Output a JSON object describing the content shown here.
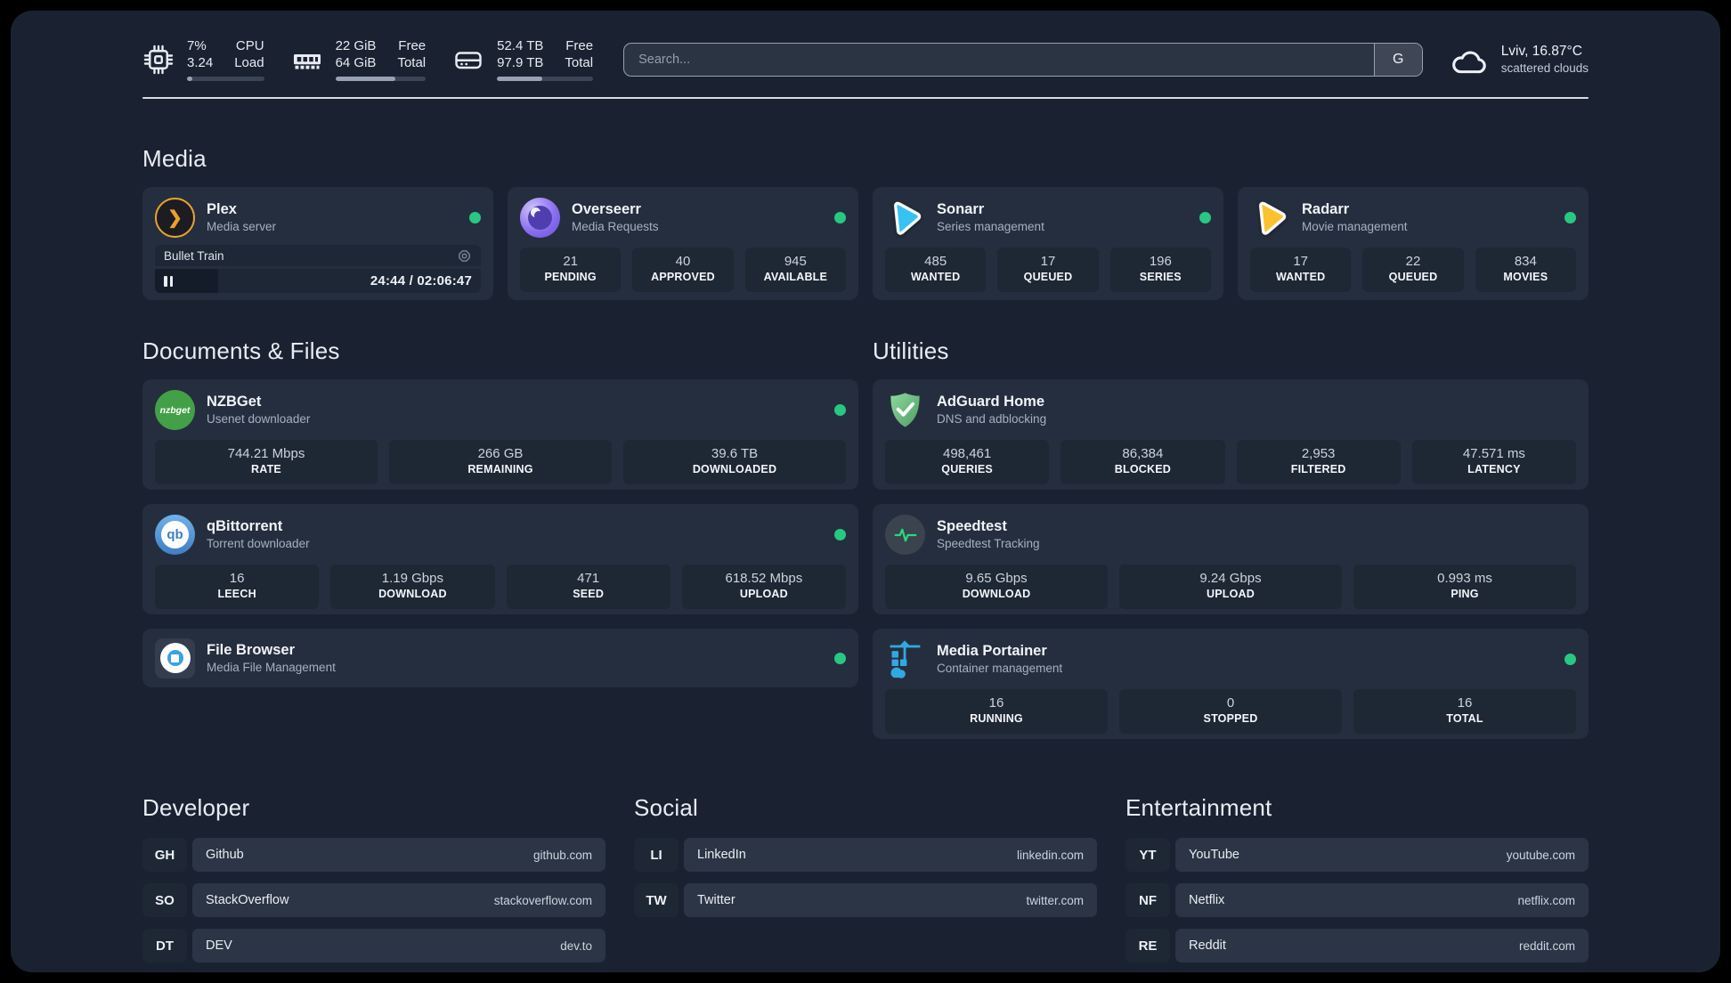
{
  "colors": {
    "background": "#1a2232",
    "card": "#252e3e",
    "tile": "#1e2734",
    "status_online": "#29c784",
    "plex_accent": "#e8a22c",
    "overseerr_accent": "#8b6ff0",
    "sonarr_accent": "#36c3f2",
    "radarr_accent": "#fcc12e",
    "nzbget_accent": "#43a047",
    "qbittorrent_accent": "#3f7fc4",
    "adguard_accent": "#63b36f",
    "speedtest_accent": "#2bd97e",
    "portainer_accent": "#33a8e0"
  },
  "header": {
    "stats": [
      {
        "icon": "cpu-icon",
        "top_value": "7%",
        "bottom_value": "3.24",
        "top_label": "CPU",
        "bottom_label": "Load",
        "progress_pct": 7
      },
      {
        "icon": "ram-icon",
        "top_value": "22 GiB",
        "bottom_value": "64 GiB",
        "top_label": "Free",
        "bottom_label": "Total",
        "progress_pct": 66
      },
      {
        "icon": "disk-icon",
        "top_value": "52.4 TB",
        "bottom_value": "97.9 TB",
        "top_label": "Free",
        "bottom_label": "Total",
        "progress_pct": 47
      }
    ],
    "search": {
      "placeholder": "Search...",
      "button_label": "G"
    },
    "weather": {
      "location": "Lviv, 16.87°C",
      "condition": "scattered clouds"
    }
  },
  "media": {
    "title": "Media",
    "plex": {
      "name": "Plex",
      "description": "Media server",
      "status": "online",
      "player": {
        "title": "Bullet Train",
        "time": "24:44 / 02:06:47",
        "progress_pct": 19.5
      }
    },
    "overseerr": {
      "name": "Overseerr",
      "description": "Media Requests",
      "status": "online",
      "stats": [
        {
          "value": "21",
          "label": "PENDING"
        },
        {
          "value": "40",
          "label": "APPROVED"
        },
        {
          "value": "945",
          "label": "AVAILABLE"
        }
      ]
    },
    "sonarr": {
      "name": "Sonarr",
      "description": "Series management",
      "status": "online",
      "stats": [
        {
          "value": "485",
          "label": "WANTED"
        },
        {
          "value": "17",
          "label": "QUEUED"
        },
        {
          "value": "196",
          "label": "SERIES"
        }
      ]
    },
    "radarr": {
      "name": "Radarr",
      "description": "Movie management",
      "status": "online",
      "stats": [
        {
          "value": "17",
          "label": "WANTED"
        },
        {
          "value": "22",
          "label": "QUEUED"
        },
        {
          "value": "834",
          "label": "MOVIES"
        }
      ]
    }
  },
  "documents": {
    "title": "Documents & Files",
    "nzbget": {
      "name": "NZBGet",
      "description": "Usenet downloader",
      "status": "online",
      "icon_text": "nzbget",
      "stats": [
        {
          "value": "744.21 Mbps",
          "label": "RATE"
        },
        {
          "value": "266 GB",
          "label": "REMAINING"
        },
        {
          "value": "39.6 TB",
          "label": "DOWNLOADED"
        }
      ]
    },
    "qbittorrent": {
      "name": "qBittorrent",
      "description": "Torrent downloader",
      "status": "online",
      "icon_text": "qb",
      "stats": [
        {
          "value": "16",
          "label": "LEECH"
        },
        {
          "value": "1.19 Gbps",
          "label": "DOWNLOAD"
        },
        {
          "value": "471",
          "label": "SEED"
        },
        {
          "value": "618.52 Mbps",
          "label": "UPLOAD"
        }
      ]
    },
    "filebrowser": {
      "name": "File Browser",
      "description": "Media File Management",
      "status": "online"
    }
  },
  "utilities": {
    "title": "Utilities",
    "adguard": {
      "name": "AdGuard Home",
      "description": "DNS and adblocking",
      "stats": [
        {
          "value": "498,461",
          "label": "QUERIES"
        },
        {
          "value": "86,384",
          "label": "BLOCKED"
        },
        {
          "value": "2,953",
          "label": "FILTERED"
        },
        {
          "value": "47.571 ms",
          "label": "LATENCY"
        }
      ]
    },
    "speedtest": {
      "name": "Speedtest",
      "description": "Speedtest Tracking",
      "stats": [
        {
          "value": "9.65 Gbps",
          "label": "DOWNLOAD"
        },
        {
          "value": "9.24 Gbps",
          "label": "UPLOAD"
        },
        {
          "value": "0.993 ms",
          "label": "PING"
        }
      ]
    },
    "portainer": {
      "name": "Media Portainer",
      "description": "Container management",
      "status": "online",
      "stats": [
        {
          "value": "16",
          "label": "RUNNING"
        },
        {
          "value": "0",
          "label": "STOPPED"
        },
        {
          "value": "16",
          "label": "TOTAL"
        }
      ]
    }
  },
  "links": {
    "developer": {
      "title": "Developer",
      "items": [
        {
          "abbr": "GH",
          "name": "Github",
          "url": "github.com"
        },
        {
          "abbr": "SO",
          "name": "StackOverflow",
          "url": "stackoverflow.com"
        },
        {
          "abbr": "DT",
          "name": "DEV",
          "url": "dev.to"
        }
      ]
    },
    "social": {
      "title": "Social",
      "items": [
        {
          "abbr": "LI",
          "name": "LinkedIn",
          "url": "linkedin.com"
        },
        {
          "abbr": "TW",
          "name": "Twitter",
          "url": "twitter.com"
        }
      ]
    },
    "entertainment": {
      "title": "Entertainment",
      "items": [
        {
          "abbr": "YT",
          "name": "YouTube",
          "url": "youtube.com"
        },
        {
          "abbr": "NF",
          "name": "Netflix",
          "url": "netflix.com"
        },
        {
          "abbr": "RE",
          "name": "Reddit",
          "url": "reddit.com"
        }
      ]
    }
  }
}
